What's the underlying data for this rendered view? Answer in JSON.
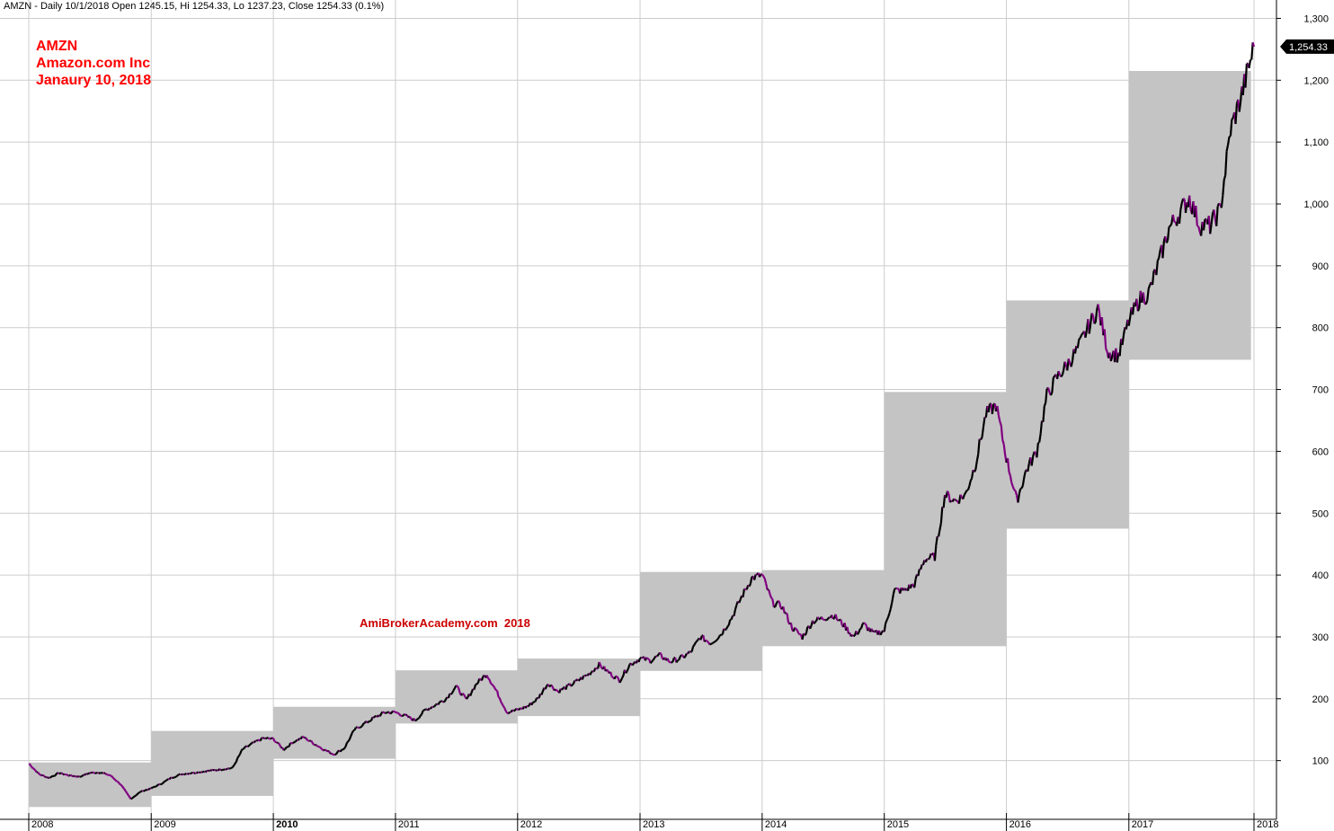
{
  "header": {
    "info": "AMZN - Daily 10/1/2018 Open 1245.15, Hi 1254.33, Lo 1237.23, Close 1254.33 (0.1%)"
  },
  "title_block": {
    "symbol": "AMZN",
    "company": "Amazon.com Inc",
    "date": "Janaury 10, 2018"
  },
  "watermark": "AmiBrokerAcademy.com  2018",
  "colors": {
    "box": "#c4c4c4",
    "up_line": "#000000",
    "down_line": "#800080",
    "label_red": "#ff0000",
    "grid": "#cccccc",
    "last_price_bg": "#000000"
  },
  "chart_data": {
    "type": "line",
    "title": "",
    "xlabel": "",
    "ylabel": "",
    "ylim": [
      0,
      1300
    ],
    "yticks": [
      100,
      200,
      300,
      400,
      500,
      600,
      700,
      800,
      900,
      1000,
      1100,
      1200,
      1300
    ],
    "ytick_labels": [
      "100",
      "200",
      "300",
      "400",
      "500",
      "600",
      "700",
      "800",
      "900",
      "1,000",
      "1,100",
      "1,200",
      "1,300"
    ],
    "xtick_labels": [
      "2008",
      "2009",
      "2010",
      "2011",
      "2012",
      "2013",
      "2014",
      "2015",
      "2016",
      "2017",
      "2018"
    ],
    "last_price_label": "1,254.33",
    "yearly_ranges": [
      {
        "year": "2008",
        "high": 97,
        "low": 25
      },
      {
        "year": "2009",
        "high": 148,
        "low": 43
      },
      {
        "year": "2010",
        "high": 187,
        "low": 103
      },
      {
        "year": "2011",
        "high": 246,
        "low": 160
      },
      {
        "year": "2012",
        "high": 265,
        "low": 172
      },
      {
        "year": "2013",
        "high": 405,
        "low": 245
      },
      {
        "year": "2014",
        "high": 408,
        "low": 285
      },
      {
        "year": "2015",
        "high": 696,
        "low": 285
      },
      {
        "year": "2016",
        "high": 844,
        "low": 475
      },
      {
        "year": "2017",
        "high": 1215,
        "low": 748
      }
    ],
    "series": [
      {
        "values_by_date": [
          [
            "2008-01-02",
            95
          ],
          [
            "2008-02-01",
            78
          ],
          [
            "2008-03-01",
            72
          ],
          [
            "2008-04-01",
            80
          ],
          [
            "2008-05-01",
            76
          ],
          [
            "2008-06-01",
            74
          ],
          [
            "2008-07-01",
            80
          ],
          [
            "2008-08-01",
            81
          ],
          [
            "2008-09-01",
            76
          ],
          [
            "2008-10-01",
            62
          ],
          [
            "2008-11-01",
            38
          ],
          [
            "2008-12-01",
            50
          ],
          [
            "2009-01-01",
            55
          ],
          [
            "2009-02-01",
            63
          ],
          [
            "2009-03-01",
            72
          ],
          [
            "2009-04-01",
            78
          ],
          [
            "2009-05-01",
            80
          ],
          [
            "2009-06-01",
            82
          ],
          [
            "2009-07-01",
            84
          ],
          [
            "2009-08-01",
            86
          ],
          [
            "2009-09-01",
            88
          ],
          [
            "2009-10-01",
            118
          ],
          [
            "2009-11-01",
            128
          ],
          [
            "2009-12-01",
            136
          ],
          [
            "2010-01-01",
            135
          ],
          [
            "2010-02-01",
            118
          ],
          [
            "2010-03-01",
            130
          ],
          [
            "2010-04-01",
            138
          ],
          [
            "2010-05-01",
            128
          ],
          [
            "2010-06-01",
            118
          ],
          [
            "2010-07-01",
            110
          ],
          [
            "2010-08-01",
            120
          ],
          [
            "2010-09-01",
            150
          ],
          [
            "2010-10-01",
            160
          ],
          [
            "2010-11-01",
            170
          ],
          [
            "2010-12-01",
            178
          ],
          [
            "2011-01-01",
            178
          ],
          [
            "2011-02-01",
            172
          ],
          [
            "2011-03-01",
            165
          ],
          [
            "2011-04-01",
            182
          ],
          [
            "2011-05-01",
            190
          ],
          [
            "2011-06-01",
            200
          ],
          [
            "2011-07-01",
            220
          ],
          [
            "2011-08-01",
            198
          ],
          [
            "2011-09-01",
            225
          ],
          [
            "2011-10-01",
            240
          ],
          [
            "2011-11-01",
            210
          ],
          [
            "2011-12-01",
            178
          ],
          [
            "2012-01-01",
            182
          ],
          [
            "2012-02-01",
            188
          ],
          [
            "2012-03-01",
            200
          ],
          [
            "2012-04-01",
            225
          ],
          [
            "2012-05-01",
            212
          ],
          [
            "2012-06-01",
            220
          ],
          [
            "2012-07-01",
            230
          ],
          [
            "2012-08-01",
            240
          ],
          [
            "2012-09-01",
            255
          ],
          [
            "2012-10-01",
            242
          ],
          [
            "2012-11-01",
            230
          ],
          [
            "2012-12-01",
            255
          ],
          [
            "2013-01-01",
            265
          ],
          [
            "2013-02-01",
            262
          ],
          [
            "2013-03-01",
            270
          ],
          [
            "2013-04-01",
            260
          ],
          [
            "2013-05-01",
            265
          ],
          [
            "2013-06-01",
            275
          ],
          [
            "2013-07-01",
            300
          ],
          [
            "2013-08-01",
            290
          ],
          [
            "2013-09-01",
            305
          ],
          [
            "2013-10-01",
            330
          ],
          [
            "2013-11-01",
            365
          ],
          [
            "2013-12-01",
            395
          ],
          [
            "2014-01-01",
            400
          ],
          [
            "2014-02-01",
            355
          ],
          [
            "2014-03-01",
            350
          ],
          [
            "2014-04-01",
            315
          ],
          [
            "2014-05-01",
            300
          ],
          [
            "2014-06-01",
            325
          ],
          [
            "2014-07-01",
            330
          ],
          [
            "2014-08-01",
            335
          ],
          [
            "2014-09-01",
            320
          ],
          [
            "2014-10-01",
            300
          ],
          [
            "2014-11-01",
            320
          ],
          [
            "2014-12-01",
            305
          ],
          [
            "2015-01-01",
            310
          ],
          [
            "2015-02-01",
            375
          ],
          [
            "2015-03-01",
            375
          ],
          [
            "2015-04-01",
            385
          ],
          [
            "2015-05-01",
            425
          ],
          [
            "2015-06-01",
            430
          ],
          [
            "2015-07-01",
            530
          ],
          [
            "2015-08-01",
            520
          ],
          [
            "2015-09-01",
            530
          ],
          [
            "2015-10-01",
            580
          ],
          [
            "2015-11-01",
            660
          ],
          [
            "2015-12-01",
            675
          ],
          [
            "2016-01-01",
            590
          ],
          [
            "2016-02-01",
            520
          ],
          [
            "2016-03-01",
            570
          ],
          [
            "2016-04-01",
            600
          ],
          [
            "2016-05-01",
            690
          ],
          [
            "2016-06-01",
            720
          ],
          [
            "2016-07-01",
            740
          ],
          [
            "2016-08-01",
            765
          ],
          [
            "2016-09-01",
            800
          ],
          [
            "2016-10-01",
            830
          ],
          [
            "2016-11-01",
            760
          ],
          [
            "2016-12-01",
            755
          ],
          [
            "2017-01-01",
            810
          ],
          [
            "2017-02-01",
            845
          ],
          [
            "2017-03-01",
            855
          ],
          [
            "2017-04-01",
            905
          ],
          [
            "2017-05-01",
            960
          ],
          [
            "2017-06-01",
            985
          ],
          [
            "2017-07-01",
            1010
          ],
          [
            "2017-08-01",
            965
          ],
          [
            "2017-09-01",
            965
          ],
          [
            "2017-10-01",
            990
          ],
          [
            "2017-11-01",
            1120
          ],
          [
            "2017-12-01",
            1170
          ],
          [
            "2018-01-10",
            1254.33
          ]
        ]
      }
    ]
  }
}
